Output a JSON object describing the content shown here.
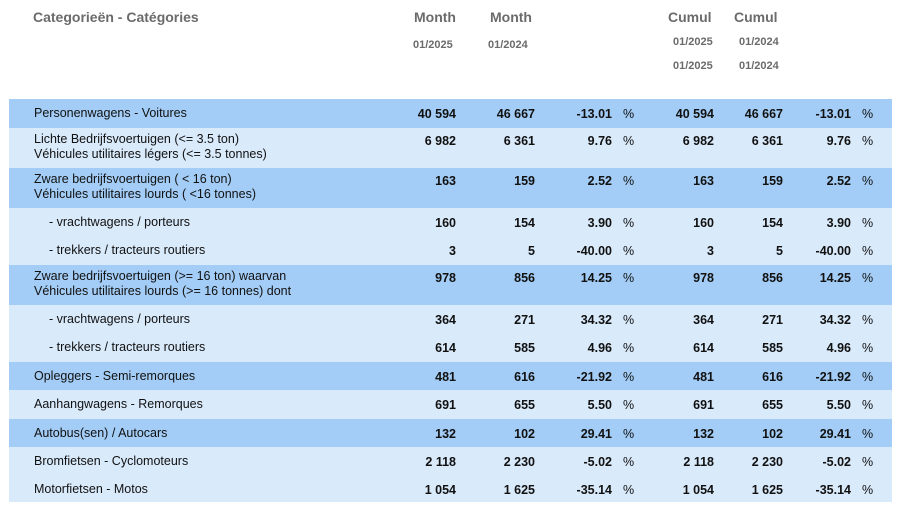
{
  "header": {
    "title": "Categorieën - Catégories",
    "col1_top": "Month",
    "col1_sub": "01/2025",
    "col2_top": "Month",
    "col2_sub": "01/2024",
    "col3_top": "Cumul",
    "col3_sub1": "01/2025",
    "col3_sub2": "01/2025",
    "col4_top": "Cumul",
    "col4_sub1": "01/2024",
    "col4_sub2": "01/2024"
  },
  "pct_symbol": "%",
  "rows": [
    {
      "l1": "Personenwagens - Voitures",
      "l2": "",
      "m25": "40 594",
      "m24": "46 667",
      "mp": "-13.01",
      "c25": "40 594",
      "c24": "46 667",
      "cp": "-13.01"
    },
    {
      "l1": "Lichte Bedrijfsvoertuigen (<= 3.5 ton)",
      "l2": "Véhicules utilitaires légers (<= 3.5 tonnes)",
      "m25": "6 982",
      "m24": "6 361",
      "mp": "9.76",
      "c25": "6 982",
      "c24": "6 361",
      "cp": "9.76"
    },
    {
      "l1": "Zware bedrijfsvoertuigen ( < 16 ton)",
      "l2": "Véhicules utilitaires lourds ( <16 tonnes)",
      "m25": "163",
      "m24": "159",
      "mp": "2.52",
      "c25": "163",
      "c24": "159",
      "cp": "2.52"
    },
    {
      "l1": "- vrachtwagens / porteurs",
      "l2": "",
      "m25": "160",
      "m24": "154",
      "mp": "3.90",
      "c25": "160",
      "c24": "154",
      "cp": "3.90"
    },
    {
      "l1": "- trekkers / tracteurs routiers",
      "l2": "",
      "m25": "3",
      "m24": "5",
      "mp": "-40.00",
      "c25": "3",
      "c24": "5",
      "cp": "-40.00"
    },
    {
      "l1": "Zware bedrijfsvoertuigen (>= 16 ton) waarvan",
      "l2": "Véhicules utilitaires lourds (>= 16 tonnes) dont",
      "m25": "978",
      "m24": "856",
      "mp": "14.25",
      "c25": "978",
      "c24": "856",
      "cp": "14.25"
    },
    {
      "l1": "- vrachtwagens / porteurs",
      "l2": "",
      "m25": "364",
      "m24": "271",
      "mp": "34.32",
      "c25": "364",
      "c24": "271",
      "cp": "34.32"
    },
    {
      "l1": "- trekkers / tracteurs routiers",
      "l2": "",
      "m25": "614",
      "m24": "585",
      "mp": "4.96",
      "c25": "614",
      "c24": "585",
      "cp": "4.96"
    },
    {
      "l1": "Opleggers - Semi-remorques",
      "l2": "",
      "m25": "481",
      "m24": "616",
      "mp": "-21.92",
      "c25": "481",
      "c24": "616",
      "cp": "-21.92"
    },
    {
      "l1": "Aanhangwagens - Remorques",
      "l2": "",
      "m25": "691",
      "m24": "655",
      "mp": "5.50",
      "c25": "691",
      "c24": "655",
      "cp": "5.50"
    },
    {
      "l1": "Autobus(sen) / Autocars",
      "l2": "",
      "m25": "132",
      "m24": "102",
      "mp": "29.41",
      "c25": "132",
      "c24": "102",
      "cp": "29.41"
    },
    {
      "l1": "Bromfietsen - Cyclomoteurs",
      "l2": "",
      "m25": "2 118",
      "m24": "2 230",
      "mp": "-5.02",
      "c25": "2 118",
      "c24": "2 230",
      "cp": "-5.02"
    },
    {
      "l1": "Motorfietsen - Motos",
      "l2": "",
      "m25": "1 054",
      "m24": "1 625",
      "mp": "-35.14",
      "c25": "1 054",
      "c24": "1 625",
      "cp": "-35.14"
    }
  ]
}
